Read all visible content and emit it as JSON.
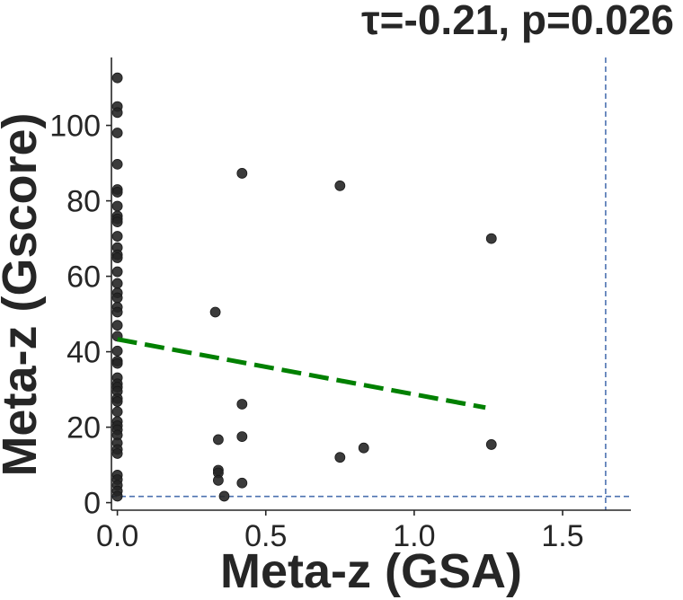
{
  "chart_data": {
    "type": "scatter",
    "title": "τ=-0.21, p=0.026",
    "xlabel": "Meta-z (GSA)",
    "ylabel": "Meta-z (Gscore)",
    "xlim": [
      -0.02,
      1.73
    ],
    "ylim": [
      -2,
      118
    ],
    "xticks": [
      0.0,
      0.5,
      1.0,
      1.5
    ],
    "xtick_labels": [
      "0.0",
      "0.5",
      "1.0",
      "1.5"
    ],
    "yticks": [
      0,
      20,
      40,
      60,
      80,
      100
    ],
    "ytick_labels": [
      "0",
      "20",
      "40",
      "60",
      "80",
      "100"
    ],
    "grid": false,
    "colors": {
      "points": "#262626",
      "trend": "#008000",
      "threshold": "#4c72b0",
      "axis": "#262626"
    },
    "points": [
      [
        0,
        112.6
      ],
      [
        0,
        105
      ],
      [
        0,
        103.4
      ],
      [
        0,
        98
      ],
      [
        0,
        89.7
      ],
      [
        0,
        83
      ],
      [
        0,
        82.3
      ],
      [
        0,
        78.6
      ],
      [
        0,
        76
      ],
      [
        0,
        75.2
      ],
      [
        0,
        74.4
      ],
      [
        0,
        70.6
      ],
      [
        0,
        67.6
      ],
      [
        0,
        65.7
      ],
      [
        0,
        64.9
      ],
      [
        0,
        61.2
      ],
      [
        0,
        58.1
      ],
      [
        0,
        55.6
      ],
      [
        0,
        54.3
      ],
      [
        0,
        51.8
      ],
      [
        0,
        50.5
      ],
      [
        0,
        47
      ],
      [
        0,
        44.1
      ],
      [
        0,
        40.2
      ],
      [
        0,
        37.5
      ],
      [
        0,
        36.9
      ],
      [
        0,
        33.1
      ],
      [
        0,
        31.5
      ],
      [
        0,
        30.6
      ],
      [
        0,
        29.5
      ],
      [
        0,
        27.6
      ],
      [
        0,
        26.8
      ],
      [
        0,
        24.1
      ],
      [
        0,
        21.5
      ],
      [
        0,
        20.4
      ],
      [
        0,
        19.3
      ],
      [
        0,
        17.9
      ],
      [
        0,
        15.8
      ],
      [
        0,
        14.1
      ],
      [
        0,
        13
      ],
      [
        0,
        7.3
      ],
      [
        0,
        6.1
      ],
      [
        0,
        4.6
      ],
      [
        0,
        3.1
      ],
      [
        0,
        1.7
      ],
      [
        0.33,
        50.5
      ],
      [
        0.34,
        16.7
      ],
      [
        0.34,
        8.6
      ],
      [
        0.34,
        7.9
      ],
      [
        0.34,
        5.9
      ],
      [
        0.36,
        1.7
      ],
      [
        0.42,
        87.3
      ],
      [
        0.42,
        26.1
      ],
      [
        0.42,
        17.5
      ],
      [
        0.42,
        5.2
      ],
      [
        0.75,
        84
      ],
      [
        0.75,
        12
      ],
      [
        0.83,
        14.5
      ],
      [
        1.26,
        70
      ],
      [
        1.26,
        15.4
      ]
    ],
    "trend_line": {
      "x": [
        0.0,
        1.24
      ],
      "y": [
        43.3,
        25.2
      ]
    },
    "threshold_x": 1.645,
    "threshold_y": 1.645
  }
}
